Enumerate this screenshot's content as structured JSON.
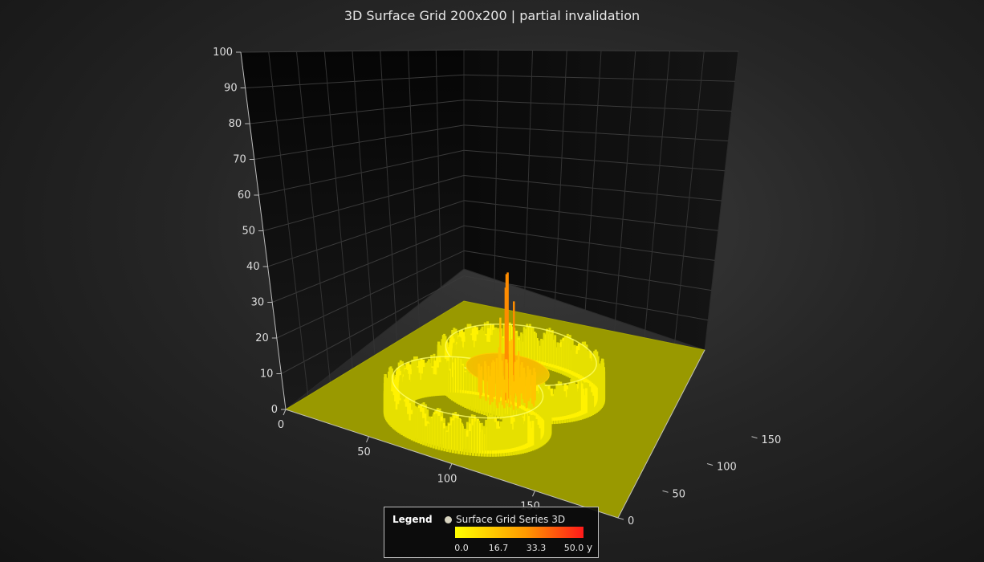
{
  "chart_data": {
    "type": "surface",
    "title": "3D Surface Grid 200x200 | partial invalidation",
    "grid_size": [
      200,
      200
    ],
    "axes": {
      "x": {
        "range": [
          0,
          200
        ],
        "ticks": [
          "0",
          "50",
          "100",
          "150"
        ]
      },
      "y": {
        "range": [
          0,
          100
        ],
        "ticks": [
          "0",
          "10",
          "20",
          "30",
          "40",
          "50",
          "60",
          "70",
          "80",
          "90",
          "100"
        ]
      },
      "z": {
        "range": [
          0,
          200
        ],
        "ticks": [
          "0",
          "50",
          "100",
          "150"
        ]
      }
    },
    "grid": true,
    "surface_features": {
      "base_level": 0,
      "rings": [
        {
          "center": [
            80,
            115
          ],
          "radius": 40,
          "height": 10
        },
        {
          "center": [
            80,
            55
          ],
          "radius": 40,
          "height": 10
        }
      ],
      "peak": {
        "center": [
          85,
          110
        ],
        "height": 47
      }
    },
    "legend": {
      "title": "Legend",
      "series_name": "Surface Grid Series 3D",
      "color_stops": [
        "#ffff00",
        "#ff9900",
        "#ff1a1a"
      ],
      "ticks": [
        "0.0",
        "16.7",
        "33.3",
        "50.0"
      ],
      "unit": "y",
      "position": "bottom-center"
    }
  }
}
